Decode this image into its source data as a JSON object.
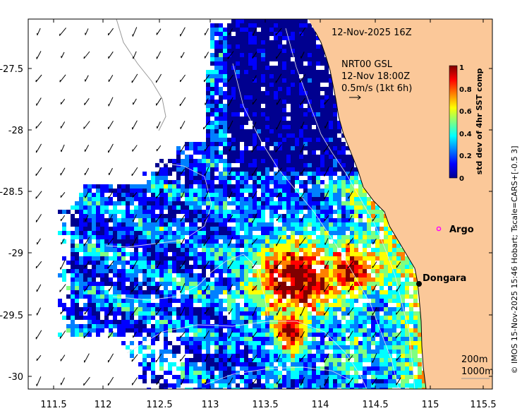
{
  "map": {
    "date_label": "12-Nov-2025 16Z",
    "wind": {
      "line1": "NRT00 GSL",
      "line2": "12-Nov 18:00Z",
      "line3": "0.5m/s (1kt 6h)"
    },
    "x_ticks": [
      "111.5",
      "112",
      "112.5",
      "113",
      "113.5",
      "114",
      "114.5",
      "115",
      "115.5"
    ],
    "y_ticks": [
      "-27.5",
      "-28",
      "-28.5",
      "-29",
      "-29.5",
      "-30"
    ],
    "colorbar": {
      "label": "std dev of 4hr SST comp",
      "ticks": [
        "1",
        "0.8",
        "0.6",
        "0.4",
        "0.2",
        "0"
      ]
    },
    "places": {
      "argo": "Argo",
      "dongara": "Dongara"
    },
    "contours": {
      "c200": "200m",
      "c1000": "1000m"
    },
    "credit": "© IMOS 15-Nov-2025 15:46 Hobart; Tscale=CARS+[-0.5 3]",
    "colors": {
      "land": "#fbc899",
      "argo_marker": "#ff00ff",
      "colormap": [
        "#00008f",
        "#0000ff",
        "#0080ff",
        "#00ffff",
        "#80ff80",
        "#ffff00",
        "#ff8000",
        "#ff0000",
        "#800000"
      ]
    }
  }
}
